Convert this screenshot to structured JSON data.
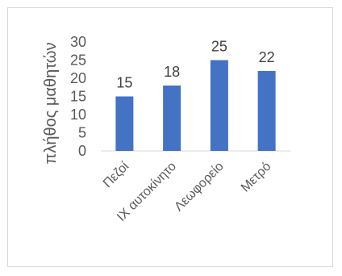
{
  "chart_data": {
    "type": "bar",
    "categories": [
      "Πεζοί",
      "ΙΧ αυτοκίνητο",
      "Λεωφορείο",
      "Μετρό"
    ],
    "values": [
      15,
      18,
      25,
      22
    ],
    "title": "",
    "xlabel": "",
    "ylabel": "πλήθος μαθητών",
    "ylim": [
      0,
      30
    ],
    "yticks": [
      0,
      5,
      10,
      15,
      20,
      25,
      30
    ],
    "grid": false,
    "legend": "none",
    "bar_color": "#4472C4",
    "data_labels": true
  }
}
